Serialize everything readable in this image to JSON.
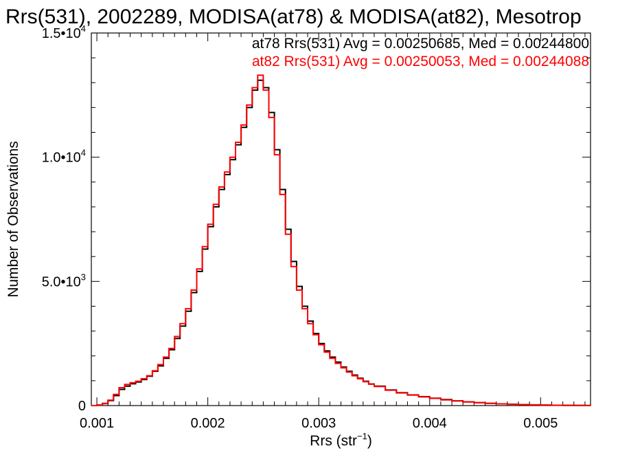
{
  "chart_data": {
    "type": "line",
    "title": "Rrs(531), 2002289, MODISA(at78) & MODISA(at82), Mesotrop",
    "xlabel": {
      "base": "Rrs (str",
      "sup": "−1",
      "tail": ")"
    },
    "ylabel": "Number of Observations",
    "xlim": [
      0.00095,
      0.00545
    ],
    "ylim": [
      0,
      15000
    ],
    "x_ticks": [
      {
        "value": 0.001,
        "label": "0.001"
      },
      {
        "value": 0.002,
        "label": "0.002"
      },
      {
        "value": 0.003,
        "label": "0.003"
      },
      {
        "value": 0.004,
        "label": "0.004"
      },
      {
        "value": 0.005,
        "label": "0.005"
      }
    ],
    "y_ticks": [
      {
        "value": 0,
        "mantissa": "0",
        "exp": ""
      },
      {
        "value": 5000,
        "mantissa": "5.0•10",
        "exp": "3"
      },
      {
        "value": 10000,
        "mantissa": "1.0•10",
        "exp": "4"
      },
      {
        "value": 15000,
        "mantissa": "1.5•10",
        "exp": "4"
      }
    ],
    "annotations": [
      {
        "text": "at78 Rrs(531) Avg = 0.00250685, Med = 0.00244800",
        "color": "#000000"
      },
      {
        "text": "at82 Rrs(531) Avg = 0.00250053, Med = 0.00244088",
        "color": "#ff0000"
      }
    ],
    "series": [
      {
        "color": "#000000",
        "x": [
          0.00095,
          0.001,
          0.00105,
          0.0011,
          0.00115,
          0.0012,
          0.00125,
          0.0013,
          0.00135,
          0.0014,
          0.00145,
          0.0015,
          0.00155,
          0.0016,
          0.00165,
          0.0017,
          0.00175,
          0.0018,
          0.00185,
          0.0019,
          0.00195,
          0.002,
          0.00205,
          0.0021,
          0.00215,
          0.0022,
          0.00225,
          0.0023,
          0.00235,
          0.0024,
          0.00245,
          0.0025,
          0.00255,
          0.0026,
          0.00265,
          0.0027,
          0.00275,
          0.0028,
          0.00285,
          0.0029,
          0.00295,
          0.003,
          0.00305,
          0.0031,
          0.00315,
          0.0032,
          0.00325,
          0.0033,
          0.00335,
          0.0034,
          0.00345,
          0.0035,
          0.0036,
          0.0037,
          0.0038,
          0.0039,
          0.004,
          0.0041,
          0.0042,
          0.0043,
          0.0044,
          0.0045,
          0.0046,
          0.0047,
          0.0048,
          0.0049,
          0.005,
          0.0051,
          0.0052,
          0.0053,
          0.0054,
          0.00545
        ],
        "y": [
          0,
          20,
          80,
          200,
          400,
          650,
          780,
          880,
          950,
          1050,
          1180,
          1380,
          1600,
          1900,
          2250,
          2700,
          3200,
          3800,
          4550,
          5400,
          6300,
          7200,
          8000,
          8700,
          9300,
          9900,
          10500,
          11200,
          12000,
          12700,
          13100,
          12800,
          11800,
          10300,
          8700,
          7100,
          5800,
          4800,
          4000,
          3400,
          2900,
          2500,
          2200,
          1950,
          1750,
          1550,
          1380,
          1230,
          1100,
          980,
          870,
          780,
          630,
          520,
          430,
          360,
          300,
          240,
          190,
          150,
          120,
          90,
          70,
          55,
          40,
          30,
          20,
          15,
          10,
          5,
          2,
          0
        ]
      },
      {
        "color": "#ff0000",
        "x": [
          0.00095,
          0.001,
          0.00105,
          0.0011,
          0.00115,
          0.0012,
          0.00125,
          0.0013,
          0.00135,
          0.0014,
          0.00145,
          0.0015,
          0.00155,
          0.0016,
          0.00165,
          0.0017,
          0.00175,
          0.0018,
          0.00185,
          0.0019,
          0.00195,
          0.002,
          0.00205,
          0.0021,
          0.00215,
          0.0022,
          0.00225,
          0.0023,
          0.00235,
          0.0024,
          0.00245,
          0.0025,
          0.00255,
          0.0026,
          0.00265,
          0.0027,
          0.00275,
          0.0028,
          0.00285,
          0.0029,
          0.00295,
          0.003,
          0.00305,
          0.0031,
          0.00315,
          0.0032,
          0.00325,
          0.0033,
          0.00335,
          0.0034,
          0.00345,
          0.0035,
          0.0036,
          0.0037,
          0.0038,
          0.0039,
          0.004,
          0.0041,
          0.0042,
          0.0043,
          0.0044,
          0.0045,
          0.0046,
          0.0047,
          0.0048,
          0.0049,
          0.005,
          0.0051,
          0.0052,
          0.0053,
          0.0054,
          0.00545
        ],
        "y": [
          0,
          25,
          90,
          220,
          450,
          720,
          850,
          920,
          980,
          1080,
          1200,
          1400,
          1650,
          1950,
          2300,
          2780,
          3300,
          3900,
          4650,
          5500,
          6400,
          7300,
          8100,
          8800,
          9400,
          10000,
          10600,
          11300,
          12100,
          12800,
          13300,
          12700,
          11600,
          10100,
          8500,
          6900,
          5600,
          4650,
          3900,
          3300,
          2850,
          2450,
          2150,
          1900,
          1700,
          1520,
          1350,
          1200,
          1080,
          960,
          860,
          770,
          620,
          510,
          420,
          350,
          290,
          230,
          185,
          145,
          115,
          88,
          68,
          52,
          38,
          28,
          20,
          14,
          9,
          5,
          2,
          0
        ]
      }
    ],
    "grid": false,
    "legend": "top-right"
  }
}
